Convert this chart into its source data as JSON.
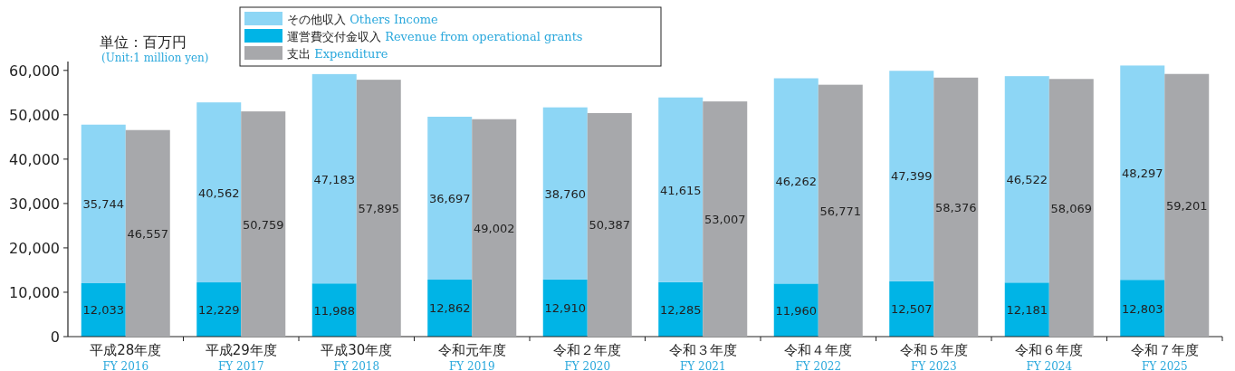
{
  "chart_data": [
    {
      "type": "bar",
      "title": "単位：百万円",
      "subtitle": "(Unit:1 million yen)",
      "categories": [
        "平成28年度\nFY 2016",
        "平成29年度\nFY 2017",
        "平成30年度\nFY 2018",
        "令和元年度\nFY 2019",
        "令和２年度\nFY 2020",
        "令和３年度\nFY 2021",
        "令和４年度\nFY 2022",
        "令和５年度\nFY 2023",
        "令和６年度\nFY 2024",
        "令和７年度\nFY 2025"
      ],
      "stacked": true,
      "series": [
        {
          "name": "運営費交付金収入 Revenue from operational grants",
          "color": "#00b4e6",
          "values": [
            12033,
            12229,
            11988,
            12862,
            12910,
            12285,
            11960,
            12507,
            12181,
            12803
          ],
          "value_labels": [
            "12,033",
            "12,229",
            "11,988",
            "12,862",
            "12,910",
            "12,285",
            "11,960",
            "12,507",
            "12,181",
            "12,803"
          ]
        },
        {
          "name": "その他収入 Others Income",
          "color": "#8dd6f5",
          "values": [
            35744,
            40562,
            47183,
            36697,
            38760,
            41615,
            46262,
            47399,
            46522,
            48297
          ],
          "value_labels": [
            "35,744",
            "40,562",
            "47,183",
            "36,697",
            "38,760",
            "41,615",
            "46,262",
            "47,399",
            "46,522",
            "48,297"
          ]
        }
      ],
      "ylim": [
        0,
        62000
      ],
      "yticks": [
        {
          "value": 0,
          "label": "0"
        },
        {
          "value": 10000,
          "label": "10,000"
        },
        {
          "value": 20000,
          "label": "20,000"
        },
        {
          "value": 30000,
          "label": "30,000"
        },
        {
          "value": 40000,
          "label": "40,000"
        },
        {
          "value": 50000,
          "label": "50,000"
        },
        {
          "value": 60000,
          "label": "60,000"
        }
      ],
      "legend": "top"
    },
    {
      "type": "bar",
      "categories": [
        "平成28年度\nFY 2016",
        "平成29年度\nFY 2017",
        "平成30年度\nFY 2018",
        "令和元年度\nFY 2019",
        "令和２年度\nFY 2020",
        "令和３年度\nFY 2021",
        "令和４年度\nFY 2022",
        "令和５年度\nFY 2023",
        "令和６年度\nFY 2024",
        "令和７年度\nFY 2025"
      ],
      "series": [
        {
          "name": "支出 Expenditure",
          "color": "#a7a8ab",
          "values": [
            46557,
            50759,
            57895,
            49002,
            50387,
            53007,
            56771,
            58376,
            58069,
            59201
          ],
          "value_labels": [
            "46,557",
            "50,759",
            "57,895",
            "49,002",
            "50,387",
            "53,007",
            "56,771",
            "58,376",
            "58,069",
            "59,201"
          ]
        }
      ],
      "ylim": [
        0,
        62000
      ],
      "yticks": [
        {
          "value": 0,
          "label": null
        },
        {
          "value": 60000,
          "label": null
        }
      ],
      "tick_labels": false,
      "legend": "top"
    }
  ]
}
